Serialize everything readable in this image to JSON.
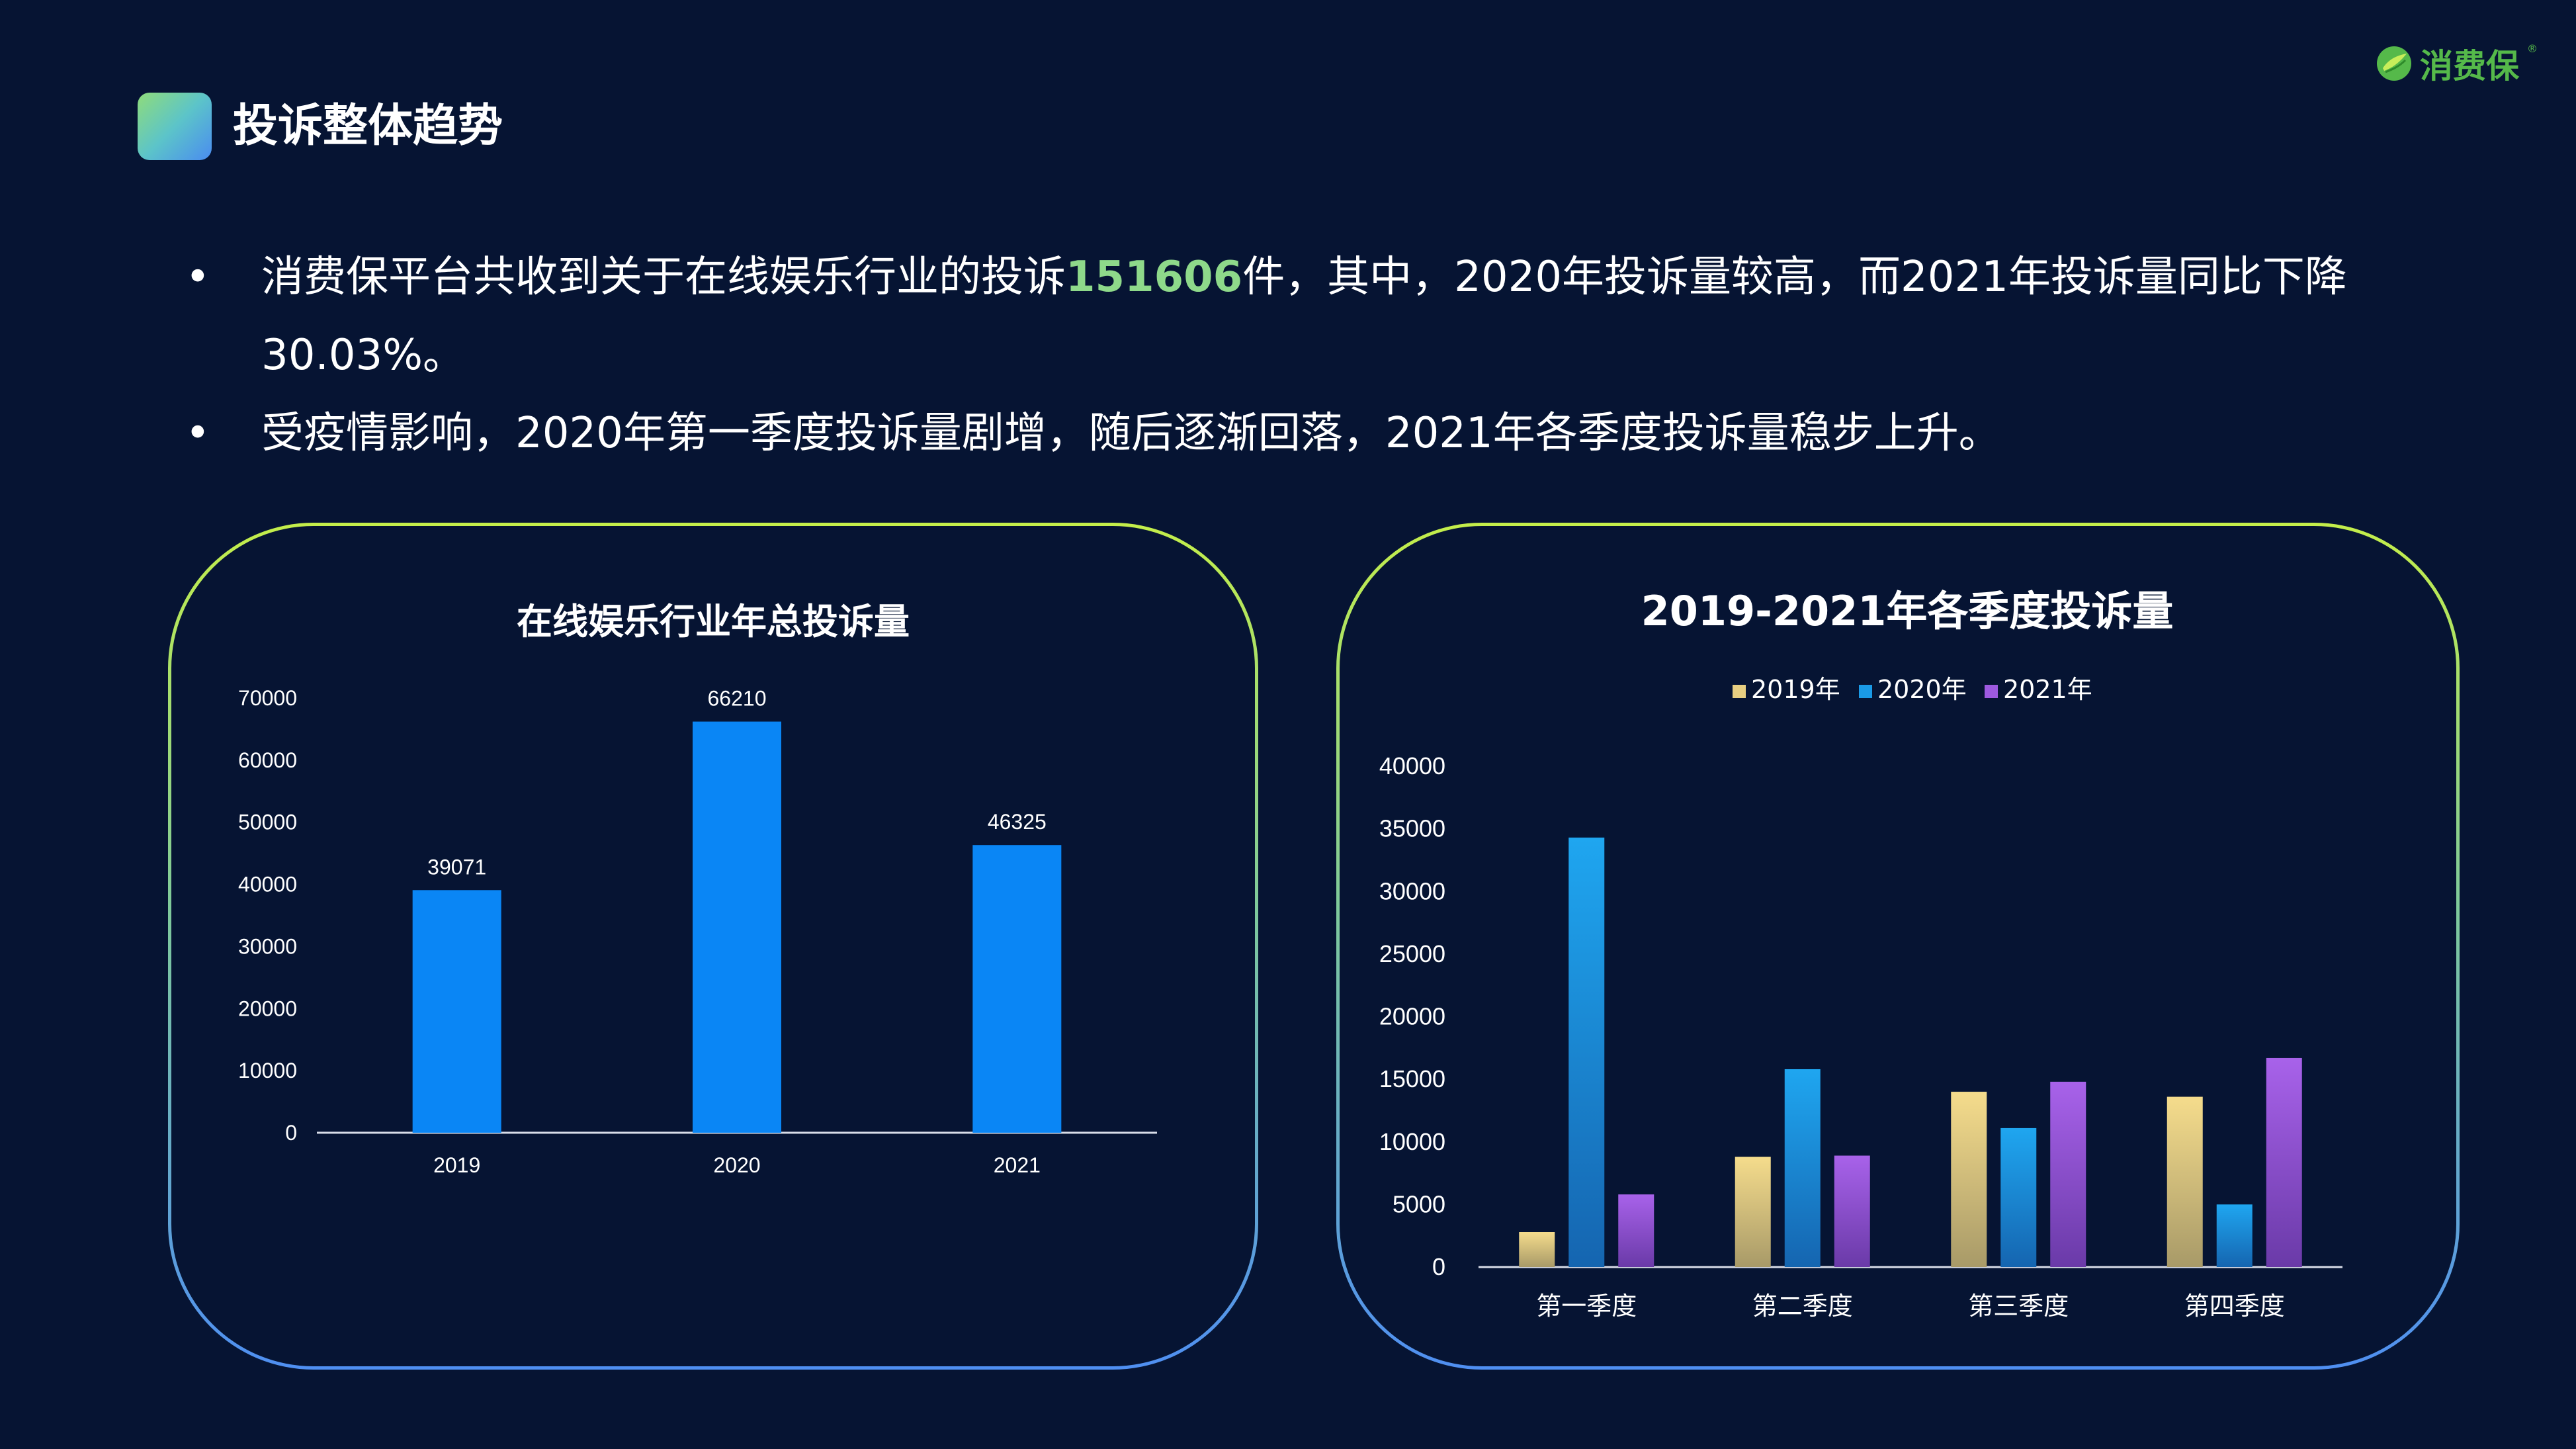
{
  "page": {
    "title": "投诉整体趋势",
    "logo_text": "消费保",
    "logo_mark": "®"
  },
  "bullets": [
    {
      "before": "消费保平台共收到关于在线娱乐行业的投诉",
      "highlight": "151606",
      "after": "件，其中，2020年投诉量较高，而2021年投诉量同比下降30.03%。"
    },
    {
      "before": "受疫情影响，2020年第一季度投诉量剧增，随后逐渐回落，2021年各季度投诉量稳步上升。",
      "highlight": "",
      "after": ""
    }
  ],
  "colors": {
    "background": "#061433",
    "highlight": "#8ed98a",
    "bar_annual": "#0a86f5",
    "series_2019": "#e8cf82",
    "series_2020": "#1a9ae6",
    "series_2021": "#9d5ae0",
    "logo": "#55b94a"
  },
  "chart_data": [
    {
      "type": "bar",
      "title": "在线娱乐行业年总投诉量",
      "categories": [
        "2019",
        "2020",
        "2021"
      ],
      "values": [
        39071,
        66210,
        46325
      ],
      "data_labels": [
        "39071",
        "66210",
        "46325"
      ],
      "ylim": [
        0,
        70000
      ],
      "yticks": [
        0,
        10000,
        20000,
        30000,
        40000,
        50000,
        60000,
        70000
      ],
      "ytick_labels": [
        "0",
        "10000",
        "20000",
        "30000",
        "40000",
        "50000",
        "60000",
        "70000"
      ],
      "grid": false,
      "legend": "none"
    },
    {
      "type": "bar",
      "title": "2019-2021年各季度投诉量",
      "categories": [
        "第一季度",
        "第二季度",
        "第三季度",
        "第四季度"
      ],
      "series": [
        {
          "name": "2019年",
          "values": [
            2800,
            8800,
            14000,
            13600
          ]
        },
        {
          "name": "2020年",
          "values": [
            34300,
            15800,
            11100,
            5000
          ]
        },
        {
          "name": "2021年",
          "values": [
            5800,
            8900,
            14800,
            16700
          ]
        }
      ],
      "ylim": [
        0,
        40000
      ],
      "yticks": [
        0,
        5000,
        10000,
        15000,
        20000,
        25000,
        30000,
        35000,
        40000
      ],
      "ytick_labels": [
        "0",
        "5000",
        "10000",
        "15000",
        "20000",
        "25000",
        "30000",
        "35000",
        "40000"
      ],
      "grid": false,
      "legend": "top-center"
    }
  ]
}
